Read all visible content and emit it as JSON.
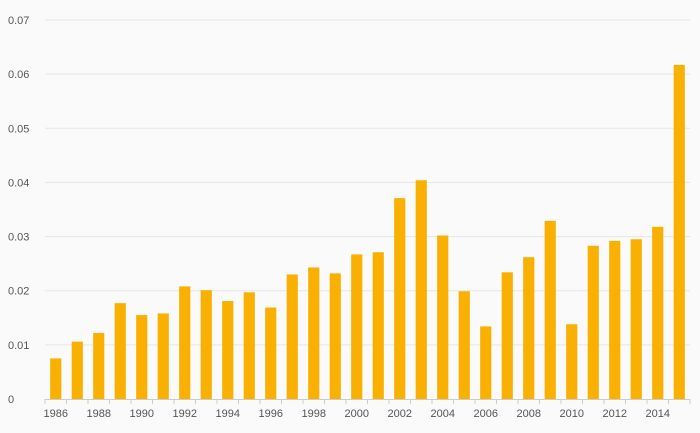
{
  "chart_data": {
    "type": "bar",
    "title": "",
    "xlabel": "",
    "ylabel": "",
    "x": [
      1986,
      1987,
      1988,
      1989,
      1990,
      1991,
      1992,
      1993,
      1994,
      1995,
      1996,
      1997,
      1998,
      1999,
      2000,
      2001,
      2002,
      2003,
      2004,
      2005,
      2006,
      2007,
      2008,
      2009,
      2010,
      2011,
      2012,
      2013,
      2014,
      2015
    ],
    "x_tick_labels": [
      "1986",
      "1988",
      "1990",
      "1992",
      "1994",
      "1996",
      "1998",
      "2000",
      "2002",
      "2004",
      "2006",
      "2008",
      "2010",
      "2012",
      "2014"
    ],
    "values": [
      0.0075,
      0.0106,
      0.0122,
      0.0177,
      0.0155,
      0.0158,
      0.0208,
      0.0201,
      0.0181,
      0.0197,
      0.0169,
      0.023,
      0.0243,
      0.0232,
      0.0267,
      0.0271,
      0.0371,
      0.0404,
      0.0302,
      0.0199,
      0.0134,
      0.0234,
      0.0262,
      0.0329,
      0.0138,
      0.0283,
      0.0292,
      0.0295,
      0.0318,
      0.0617
    ],
    "ylim": [
      0,
      0.07
    ],
    "y_ticks": [
      0,
      0.01,
      0.02,
      0.03,
      0.04,
      0.05,
      0.06,
      0.07
    ],
    "y_tick_labels": [
      "0",
      "0.01",
      "0.02",
      "0.03",
      "0.04",
      "0.05",
      "0.06",
      "0.07"
    ],
    "grid": true,
    "bar_color": "#f9b000"
  }
}
